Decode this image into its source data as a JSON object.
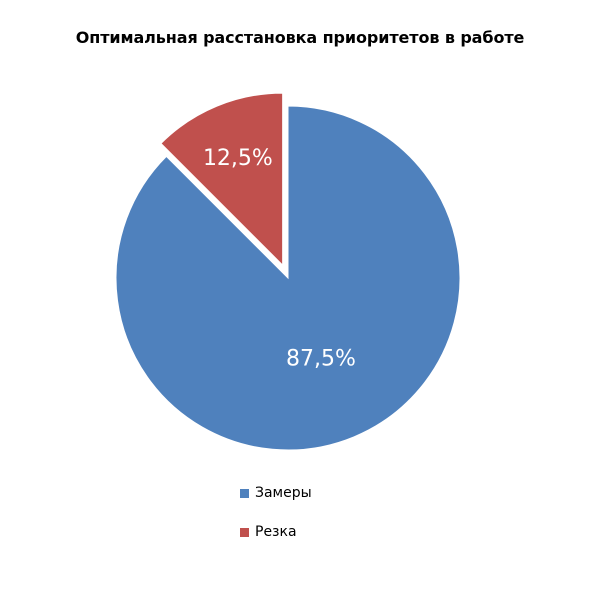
{
  "chart_data": {
    "type": "pie",
    "title": "Оптимальная расстановка приоритетов в работе",
    "slices": [
      {
        "name": "Замеры",
        "value": 87.5,
        "label": "87,5%",
        "color": "#4F81BD"
      },
      {
        "name": "Резка",
        "value": 12.5,
        "label": "12,5%",
        "color": "#C0504D"
      }
    ],
    "legend_position": "bottom"
  }
}
